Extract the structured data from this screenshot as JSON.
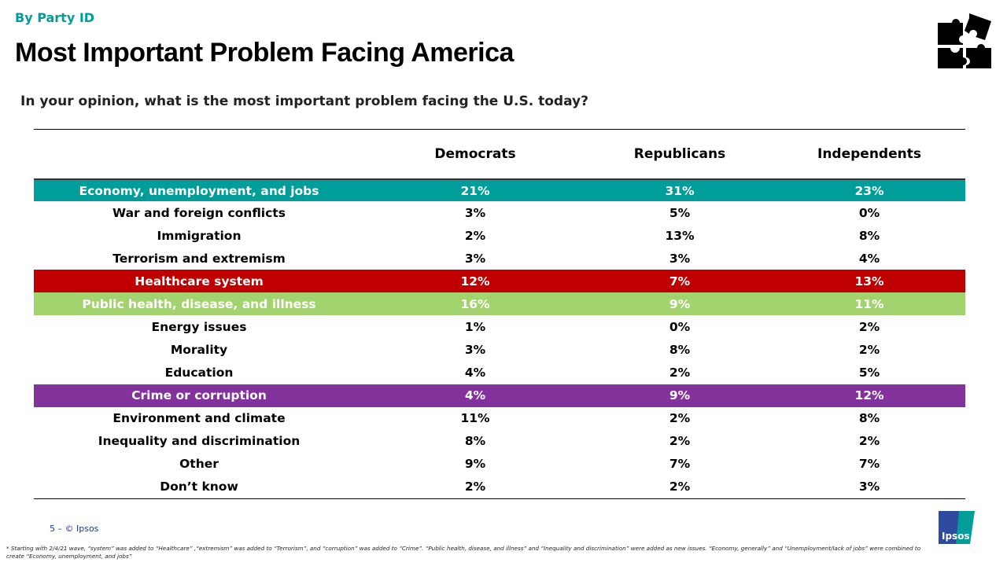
{
  "header": {
    "kicker": "By Party ID",
    "title": "Most Important Problem Facing America",
    "question": "In your opinion, what is the most important problem facing the U.S. today?"
  },
  "table": {
    "columns": [
      "",
      "Democrats",
      "Republicans",
      "Independents"
    ],
    "rows": [
      {
        "label": "Economy, unemployment, and jobs",
        "values": [
          "21%",
          "31%",
          "23%"
        ],
        "highlight": "#009D9A"
      },
      {
        "label": "War and foreign conflicts",
        "values": [
          "3%",
          "5%",
          "0%"
        ],
        "highlight": null
      },
      {
        "label": "Immigration",
        "values": [
          "2%",
          "13%",
          "8%"
        ],
        "highlight": null
      },
      {
        "label": "Terrorism and extremism",
        "values": [
          "3%",
          "3%",
          "4%"
        ],
        "highlight": null
      },
      {
        "label": "Healthcare system",
        "values": [
          "12%",
          "7%",
          "13%"
        ],
        "highlight": "#C00000"
      },
      {
        "label": "Public health, disease, and illness",
        "values": [
          "16%",
          "9%",
          "11%"
        ],
        "highlight": "#A3D36F"
      },
      {
        "label": "Energy issues",
        "values": [
          "1%",
          "0%",
          "2%"
        ],
        "highlight": null
      },
      {
        "label": "Morality",
        "values": [
          "3%",
          "8%",
          "2%"
        ],
        "highlight": null
      },
      {
        "label": "Education",
        "values": [
          "4%",
          "2%",
          "5%"
        ],
        "highlight": null
      },
      {
        "label": "Crime or corruption",
        "values": [
          "4%",
          "9%",
          "12%"
        ],
        "highlight": "#83329B"
      },
      {
        "label": "Environment and climate",
        "values": [
          "11%",
          "2%",
          "8%"
        ],
        "highlight": null
      },
      {
        "label": "Inequality and discrimination",
        "values": [
          "8%",
          "2%",
          "2%"
        ],
        "highlight": null
      },
      {
        "label": "Other",
        "values": [
          "9%",
          "7%",
          "7%"
        ],
        "highlight": null
      },
      {
        "label": "Don’t know",
        "values": [
          "2%",
          "2%",
          "3%"
        ],
        "highlight": null
      }
    ]
  },
  "footer": {
    "page": "5 –  © Ipsos",
    "note": "* Starting with 2/4/21 wave, “system” was added to “Healthcare” ,“extremism” was added to “Terrorism”, and “corruption” was added to “Crime”. “Public health, disease, and illness” and “Inequality and discrimination” were added as new issues. “Economy, generally” and “Unemployment/lack of jobs” were combined to create “Economy, unemployment, and jobs”",
    "logo_text": "Ipsos"
  },
  "icons": {
    "top_right": "puzzle-pieces-icon"
  }
}
